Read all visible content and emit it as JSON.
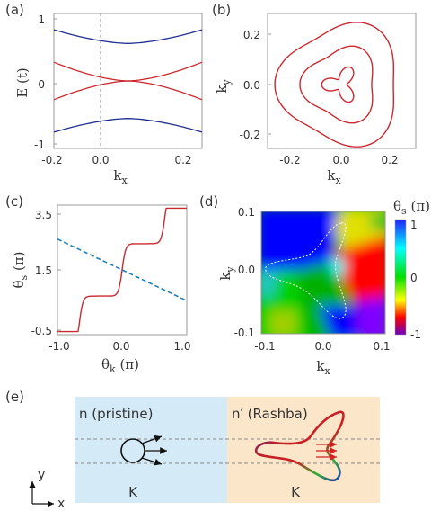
{
  "panels": {
    "a": {
      "label": "(a)",
      "ylabel": "E (t)",
      "xlabel": "k",
      "xlabel_sub": "x",
      "xticks": [
        "-0.2",
        "-0.0",
        "0.0",
        "0.2"
      ],
      "yticks": [
        "1",
        "0",
        "-1"
      ]
    },
    "b": {
      "label": "(b)",
      "ylabel": "k",
      "ylabel_sub": "y",
      "xlabel": "k",
      "xlabel_sub": "x",
      "xticks": [
        "-0.2",
        "0.0",
        "0.2"
      ],
      "yticks": [
        "0.2",
        "0.0",
        "-0.2"
      ]
    },
    "c": {
      "label": "(c)",
      "ylabel": "θ",
      "ylabel_sub": "s",
      "ylabel_unit": " (π)",
      "xlabel": "θ",
      "xlabel_sub": "k",
      "xlabel_unit": " (π)",
      "xticks": [
        "-1.0",
        "0.0",
        "1.0"
      ],
      "yticks": [
        "3.5",
        "1.5",
        "-0.5"
      ]
    },
    "d": {
      "label": "(d)",
      "ylabel": "k",
      "ylabel_sub": "y",
      "xlabel": "k",
      "xlabel_sub": "x",
      "xticks": [
        "-0.1",
        "0.0",
        "0.1"
      ],
      "yticks": [
        "0.1",
        "0.0",
        "-0.1"
      ],
      "colorbar_title": "θ",
      "colorbar_sub": "s",
      "colorbar_unit": " (π)",
      "colorbar_ticks": [
        "1",
        "0",
        "-1"
      ]
    },
    "e": {
      "label": "(e)",
      "region_left": "n (pristine)",
      "region_right": "n′ (Rashba)",
      "valley_left": "K",
      "valley_right": "K",
      "axis_y": "y",
      "axis_x": "x"
    }
  },
  "colors": {
    "band_blue": "#1f2f8f",
    "band_red": "#c9292f",
    "pristine_bg": "#d4ebf7",
    "rashba_bg": "#fbe6c9",
    "dashed_line": "#1f7fb8"
  },
  "chart_data": [
    {
      "type": "line",
      "panel": "a",
      "xlabel": "k_x",
      "ylabel": "E (t)",
      "xlim": [
        -0.2,
        0.2
      ],
      "ylim": [
        -1,
        1
      ],
      "series": [
        {
          "x": [
            -0.2,
            -0.1,
            0.0,
            0.1,
            0.2
          ],
          "values": [
            0.82,
            0.66,
            0.6,
            0.66,
            0.82
          ]
        },
        {
          "x": [
            -0.2,
            -0.1,
            0.0,
            0.1,
            0.2
          ],
          "values": [
            0.3,
            0.12,
            0.0,
            0.12,
            0.3
          ]
        },
        {
          "x": [
            -0.2,
            -0.1,
            0.0,
            0.1,
            0.2
          ],
          "values": [
            -0.3,
            -0.12,
            0.0,
            -0.12,
            -0.3
          ]
        },
        {
          "x": [
            -0.2,
            -0.1,
            0.0,
            0.1,
            0.2
          ],
          "values": [
            -0.82,
            -0.66,
            -0.6,
            -0.66,
            -0.82
          ]
        }
      ]
    },
    {
      "type": "line",
      "panel": "b",
      "xlabel": "k_x",
      "ylabel": "k_y",
      "xlim": [
        -0.25,
        0.25
      ],
      "ylim": [
        -0.25,
        0.25
      ],
      "contours": 3
    },
    {
      "type": "line",
      "panel": "c",
      "xlabel": "θ_k (π)",
      "ylabel": "θ_s (π)",
      "xlim": [
        -1,
        1
      ],
      "ylim": [
        -0.6,
        3.6
      ],
      "series": [
        {
          "x": [
            -1.0,
            -0.9,
            -0.6,
            -0.4,
            -0.2,
            0.0,
            0.2,
            0.4,
            0.6,
            0.9,
            1.0
          ],
          "values": [
            -0.5,
            0.0,
            0.1,
            0.4,
            1.4,
            1.5,
            1.6,
            2.6,
            2.9,
            3.0,
            3.5
          ]
        },
        {
          "x": [
            -1.0,
            1.0
          ],
          "values": [
            2.5,
            0.5
          ]
        }
      ]
    },
    {
      "type": "heatmap",
      "panel": "d",
      "xlabel": "k_x",
      "ylabel": "k_y",
      "xlim": [
        -0.1,
        0.1
      ],
      "ylim": [
        -0.1,
        0.1
      ],
      "colorbar_range": [
        -1,
        1
      ]
    }
  ]
}
